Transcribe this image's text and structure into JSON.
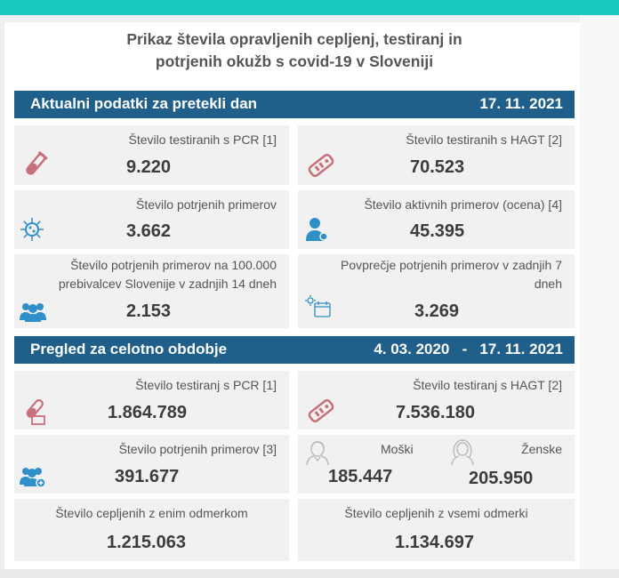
{
  "title_line1": "Prikaz števila opravljenih cepljenj, testiranj in",
  "title_line2": "potrjenih okužb s covid-19 v Sloveniji",
  "daily": {
    "header": "Aktualni podatki za pretekli dan",
    "date": "17. 11. 2021",
    "pcr_label": "Število testiranih s PCR [1]",
    "pcr_value": "9.220",
    "hagt_label": "Število testiranih s HAGT [2]",
    "hagt_value": "70.523",
    "confirmed_label": "Število potrjenih primerov",
    "confirmed_value": "3.662",
    "active_label": "Število aktivnih primerov (ocena) [4]",
    "active_value": "45.395",
    "per100k_label_1": "Število potrjenih primerov na 100.000",
    "per100k_label_2": "prebivalcev Slovenije v zadnjih 14 dneh",
    "per100k_value": "2.153",
    "avg7_label_1": "Povprečje potrjenih primerov v zadnjih 7",
    "avg7_label_2": "dneh",
    "avg7_value": "3.269"
  },
  "total": {
    "header": "Pregled za celotno obdobje",
    "date_from": "4. 03. 2020",
    "separator": "-",
    "date_to": "17. 11. 2021",
    "pcr_label": "Število testiranj s PCR [1]",
    "pcr_value": "1.864.789",
    "hagt_label": "Število testiranj s HAGT [2]",
    "hagt_value": "7.536.180",
    "confirmed_label": "Število potrjenih primerov [3]",
    "confirmed_value": "391.677",
    "male_label": "Moški",
    "male_value": "185.447",
    "female_label": "Ženske",
    "female_value": "205.950",
    "vacc_one_label": "Število cepljenih z enim odmerkom",
    "vacc_one_value": "1.215.063",
    "vacc_all_label": "Število cepljenih z vsemi odmerki",
    "vacc_all_value": "1.134.697"
  },
  "colors": {
    "topbar": "#19c9c0",
    "header": "#1f5f8a",
    "icon_red": "#c8707a",
    "icon_blue": "#2f8fc8"
  },
  "icons": [
    "test-tube-icon",
    "antigen-test-icon",
    "virus-icon",
    "person-icon",
    "group-icon",
    "calendar-icon",
    "male-icon",
    "female-icon"
  ]
}
